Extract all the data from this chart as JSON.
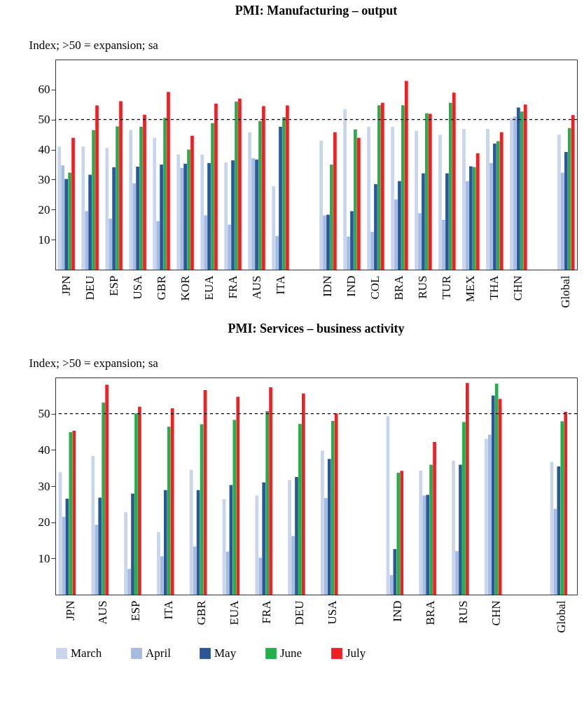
{
  "chart_data": [
    {
      "type": "bar",
      "title": "PMI: Manufacturing – output",
      "ylabel": "Index; >50 = expansion; sa",
      "categories": [
        "JPN",
        "DEU",
        "ESP",
        "USA",
        "GBR",
        "KOR",
        "EUA",
        "FRA",
        "AUS",
        "ITA",
        null,
        "IDN",
        "IND",
        "COL",
        "BRA",
        "RUS",
        "TUR",
        "MEX",
        "THA",
        "CHN",
        null,
        "Global"
      ],
      "series": [
        {
          "name": "March",
          "color": "#c8d5ec",
          "values": [
            41,
            41,
            40.6,
            46.5,
            44,
            38.4,
            38.4,
            35.7,
            45.8,
            27.8,
            null,
            43,
            53.5,
            47.6,
            47.6,
            46.3,
            44.9,
            46.9,
            46.9,
            50.5,
            null,
            45
          ]
        },
        {
          "name": "April",
          "color": "#a6bbe0",
          "values": [
            34.7,
            19.5,
            17,
            28.8,
            16.2,
            33.9,
            18.1,
            15,
            37.1,
            11.2,
            null,
            18.1,
            11,
            12.6,
            23.4,
            18.8,
            16.6,
            29.5,
            35.5,
            51,
            null,
            32.3
          ]
        },
        {
          "name": "May",
          "color": "#2b5797",
          "values": [
            30.2,
            31.6,
            34.1,
            34.3,
            35,
            35.3,
            35.5,
            36.4,
            36.7,
            47.6,
            null,
            18.3,
            19.5,
            28.5,
            29.5,
            32.1,
            32.1,
            34.4,
            42,
            54,
            null,
            39.2
          ]
        },
        {
          "name": "June",
          "color": "#22b04b",
          "values": [
            32.3,
            46.5,
            47.7,
            47.6,
            50.6,
            40,
            48.8,
            56,
            49.5,
            50.8,
            null,
            35,
            46.7,
            54.8,
            54.8,
            52.1,
            55.6,
            34.2,
            42.8,
            52.7,
            null,
            47.2
          ]
        },
        {
          "name": "July",
          "color": "#ee2024",
          "values": [
            43.9,
            54.7,
            56.1,
            51.6,
            59.2,
            44.6,
            55.3,
            57,
            54.5,
            54.7,
            null,
            45.8,
            43.9,
            55.6,
            62.9,
            51.9,
            59,
            38.8,
            45.8,
            55,
            null,
            51.5
          ]
        }
      ],
      "ylim": [
        0,
        70
      ],
      "yticks": [
        10,
        20,
        30,
        40,
        50,
        60
      ],
      "ref_lines": [
        {
          "axis": "y",
          "value": 50,
          "line_style": "dashed",
          "color": "#000000"
        }
      ],
      "grid": false,
      "legend": "bottom"
    },
    {
      "type": "bar",
      "title": "PMI: Services – business activity",
      "ylabel": "Index; >50 = expansion; sa",
      "categories": [
        "JPN",
        "AUS",
        "ESP",
        "ITA",
        "GBR",
        "EUA",
        "FRA",
        "DEU",
        "USA",
        null,
        "IND",
        "BRA",
        "RUS",
        "CHN",
        null,
        "Global"
      ],
      "series": [
        {
          "name": "March",
          "color": "#c8d5ec",
          "values": [
            33.8,
            38.3,
            22.8,
            17.3,
            34.5,
            26.4,
            27.4,
            31.7,
            39.8,
            null,
            49.3,
            34.3,
            37,
            43,
            null,
            36.7
          ]
        },
        {
          "name": "April",
          "color": "#a6bbe0",
          "values": [
            21.5,
            19.3,
            7.1,
            10.6,
            13.3,
            11.9,
            10.2,
            16.2,
            26.7,
            null,
            5.4,
            27.4,
            12,
            44.2,
            null,
            23.7
          ]
        },
        {
          "name": "May",
          "color": "#2b5797",
          "values": [
            26.5,
            26.8,
            27.9,
            28.9,
            28.9,
            30.3,
            31,
            32.5,
            37.5,
            null,
            12.6,
            27.6,
            35.9,
            55,
            null,
            35.4
          ]
        },
        {
          "name": "June",
          "color": "#22b04b",
          "values": [
            44.9,
            53.1,
            50.1,
            46.4,
            47.1,
            48.3,
            50.7,
            47.2,
            48,
            null,
            33.7,
            35.9,
            47.7,
            58.3,
            null,
            47.9
          ]
        },
        {
          "name": "July",
          "color": "#ee2024",
          "values": [
            45.3,
            58,
            51.9,
            51.5,
            56.5,
            54.7,
            57.3,
            55.6,
            50.1,
            null,
            34.2,
            42.2,
            58.5,
            54.1,
            null,
            50.5
          ]
        }
      ],
      "ylim": [
        0,
        60
      ],
      "yticks": [
        10,
        20,
        30,
        40,
        50
      ],
      "ref_lines": [
        {
          "axis": "y",
          "value": 50,
          "line_style": "dashed",
          "color": "#000000"
        }
      ],
      "grid": false,
      "legend": "bottom"
    }
  ]
}
